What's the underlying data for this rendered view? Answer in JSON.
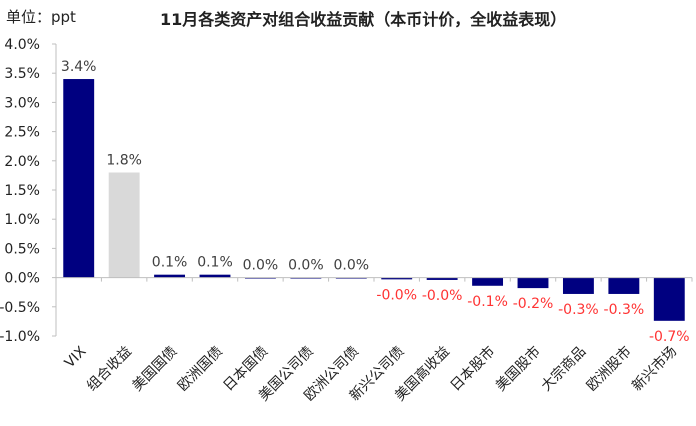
{
  "chart_data": {
    "type": "bar",
    "title": "11月各类资产对组合收益贡献（本币计价，全收益表现）",
    "unit_label": "单位：ppt",
    "categories": [
      "VIX",
      "组合收益",
      "美国国债",
      "欧洲国债",
      "日本国债",
      "美国公司债",
      "欧洲公司债",
      "新兴公司债",
      "美国高收益",
      "日本股市",
      "美国股市",
      "大宗商品",
      "欧洲股市",
      "新兴市场"
    ],
    "values": [
      3.4,
      1.8,
      0.05,
      0.05,
      0.0,
      0.0,
      0.0,
      -0.03,
      -0.04,
      -0.14,
      -0.18,
      -0.28,
      -0.28,
      -0.74
    ],
    "data_labels": [
      "3.4%",
      "1.8%",
      "0.1%",
      "0.1%",
      "0.0%",
      "0.0%",
      "0.0%",
      "-0.0%",
      "-0.0%",
      "-0.1%",
      "-0.2%",
      "-0.3%",
      "-0.3%",
      "-0.7%"
    ],
    "y_ticks": [
      "4.0%",
      "3.5%",
      "3.0%",
      "2.5%",
      "2.0%",
      "1.5%",
      "1.0%",
      "0.5%",
      "0.0%",
      "-0.5%",
      "-1.0%"
    ],
    "ylim": [
      -1.0,
      4.0
    ],
    "grid": false,
    "colors": {
      "bar": "#000080",
      "highlight_bar": "#d9d9d9",
      "positive_label": "#404040",
      "negative_label": "#ff3333",
      "axis": "#bfbfbf"
    },
    "highlight_category": "组合收益"
  }
}
